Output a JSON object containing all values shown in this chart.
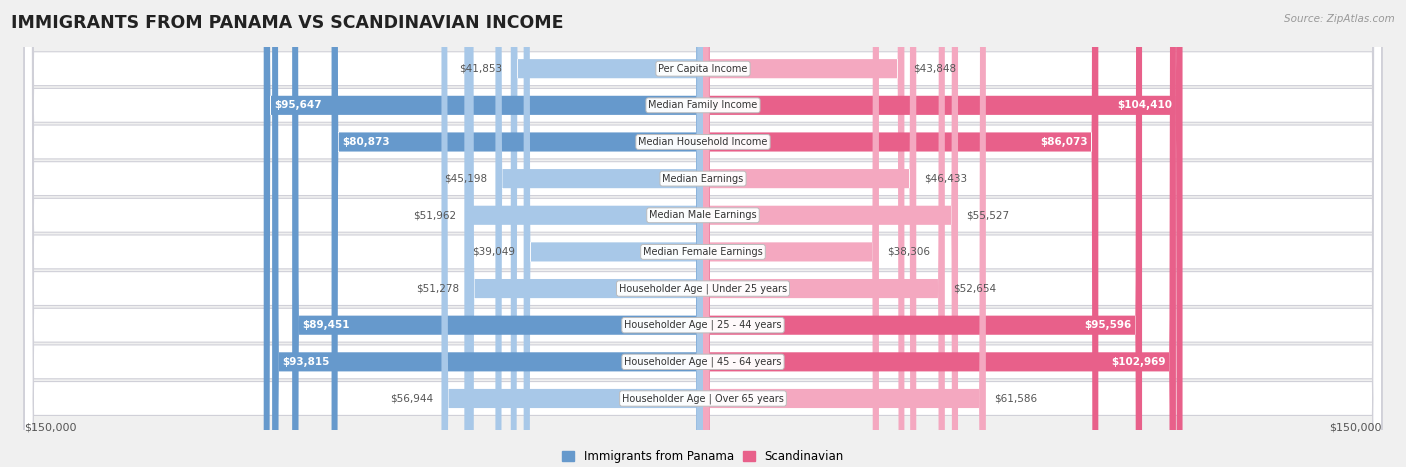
{
  "title": "IMMIGRANTS FROM PANAMA VS SCANDINAVIAN INCOME",
  "source": "Source: ZipAtlas.com",
  "categories": [
    "Per Capita Income",
    "Median Family Income",
    "Median Household Income",
    "Median Earnings",
    "Median Male Earnings",
    "Median Female Earnings",
    "Householder Age | Under 25 years",
    "Householder Age | 25 - 44 years",
    "Householder Age | 45 - 64 years",
    "Householder Age | Over 65 years"
  ],
  "panama_values": [
    41853,
    95647,
    80873,
    45198,
    51962,
    39049,
    51278,
    89451,
    93815,
    56944
  ],
  "scandinavian_values": [
    43848,
    104410,
    86073,
    46433,
    55527,
    38306,
    52654,
    95596,
    102969,
    61586
  ],
  "panama_color_light": "#a8c8e8",
  "panama_color_dark": "#6699cc",
  "scandinavian_color_light": "#f4a8c0",
  "scandinavian_color_dark": "#e8608a",
  "background_color": "#f0f0f0",
  "row_bg_color": "#ffffff",
  "row_border_color": "#d0d0d8",
  "max_value": 150000,
  "legend_panama": "Immigrants from Panama",
  "legend_scandinavian": "Scandinavian",
  "xlabel_left": "$150,000",
  "xlabel_right": "$150,000",
  "large_threshold": 65000
}
